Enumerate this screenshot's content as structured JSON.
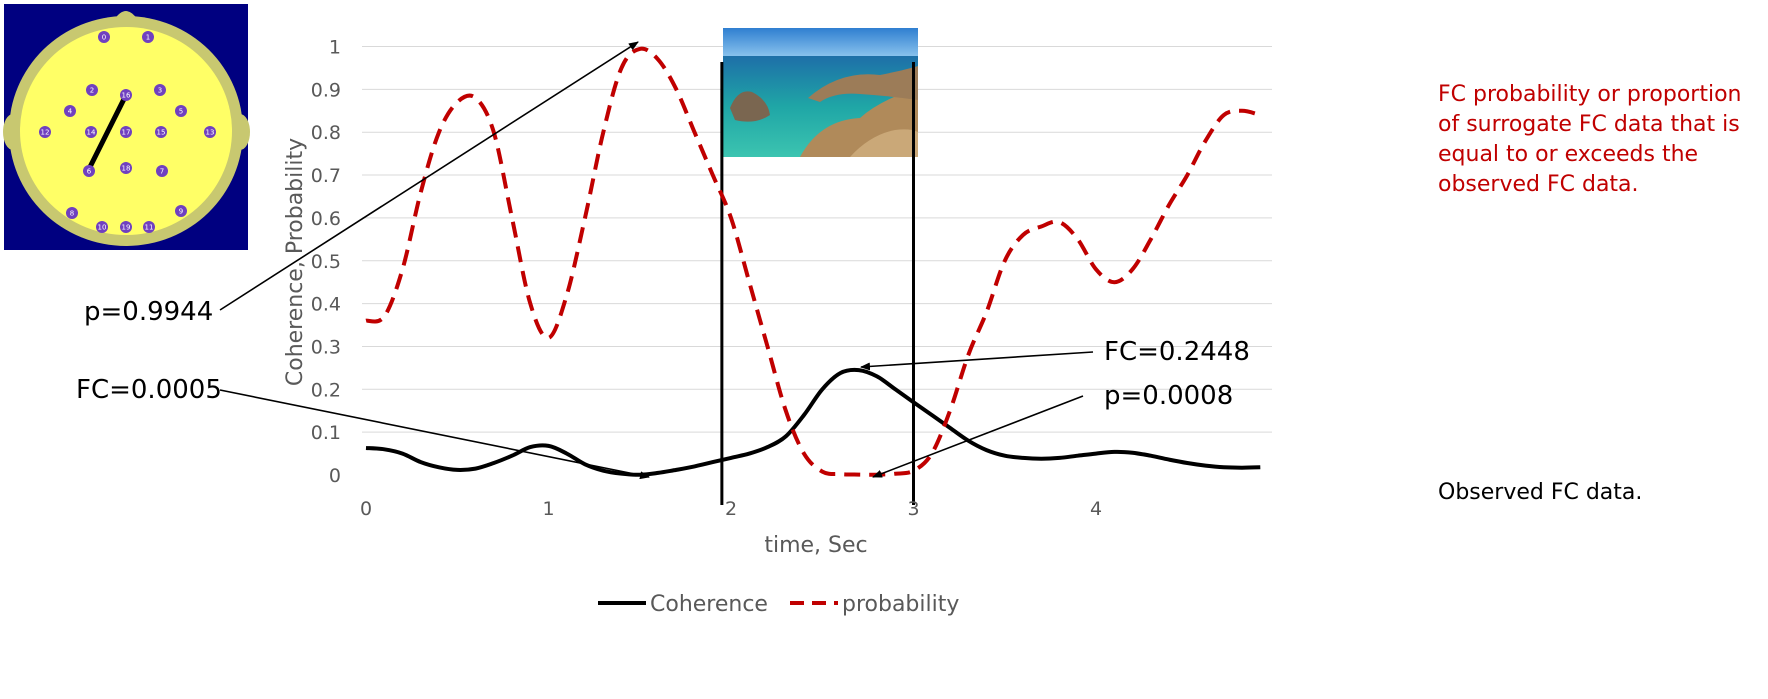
{
  "chart_data": {
    "type": "line",
    "xlabel": "time, Sec",
    "ylabel": "Coherence, Probability",
    "xlim": [
      0,
      4.9
    ],
    "ylim": [
      0,
      1
    ],
    "x_ticks": [
      "0",
      "1",
      "2",
      "3",
      "4"
    ],
    "y_ticks": [
      "0",
      "0.1",
      "0.2",
      "0.3",
      "0.4",
      "0.5",
      "0.6",
      "0.7",
      "0.8",
      "0.9",
      "1"
    ],
    "grid": true,
    "legend_position": "bottom",
    "series": [
      {
        "name": "Coherence",
        "style": "solid",
        "color": "#000000",
        "x": [
          0,
          0.1,
          0.2,
          0.3,
          0.4,
          0.5,
          0.6,
          0.7,
          0.8,
          0.9,
          1.0,
          1.1,
          1.2,
          1.3,
          1.4,
          1.5,
          1.6,
          1.7,
          1.8,
          1.9,
          2.0,
          2.1,
          2.2,
          2.3,
          2.4,
          2.5,
          2.6,
          2.7,
          2.8,
          2.9,
          3.0,
          3.1,
          3.2,
          3.3,
          3.4,
          3.5,
          3.6,
          3.7,
          3.8,
          3.9,
          4.0,
          4.1,
          4.2,
          4.3,
          4.4,
          4.5,
          4.6,
          4.7,
          4.8,
          4.9
        ],
        "y": [
          0.063,
          0.06,
          0.05,
          0.03,
          0.018,
          0.012,
          0.015,
          0.028,
          0.045,
          0.065,
          0.068,
          0.05,
          0.025,
          0.01,
          0.003,
          0.0005,
          0.005,
          0.012,
          0.02,
          0.03,
          0.04,
          0.05,
          0.065,
          0.09,
          0.14,
          0.2,
          0.238,
          0.2448,
          0.23,
          0.2,
          0.17,
          0.14,
          0.11,
          0.08,
          0.058,
          0.045,
          0.04,
          0.038,
          0.04,
          0.045,
          0.05,
          0.054,
          0.052,
          0.045,
          0.036,
          0.028,
          0.022,
          0.018,
          0.017,
          0.018
        ]
      },
      {
        "name": "probability",
        "style": "dashed",
        "color": "#c00000",
        "x": [
          0,
          0.1,
          0.2,
          0.3,
          0.4,
          0.5,
          0.6,
          0.7,
          0.8,
          0.9,
          1.0,
          1.1,
          1.2,
          1.3,
          1.4,
          1.5,
          1.6,
          1.7,
          1.8,
          1.9,
          2.0,
          2.1,
          2.2,
          2.3,
          2.4,
          2.5,
          2.6,
          2.7,
          2.8,
          2.9,
          3.0,
          3.1,
          3.2,
          3.3,
          3.4,
          3.5,
          3.6,
          3.7,
          3.8,
          3.9,
          4.0,
          4.1,
          4.2,
          4.3,
          4.4,
          4.5,
          4.6,
          4.7,
          4.8,
          4.9
        ],
        "y": [
          0.36,
          0.37,
          0.48,
          0.66,
          0.8,
          0.87,
          0.88,
          0.8,
          0.6,
          0.4,
          0.32,
          0.42,
          0.6,
          0.8,
          0.95,
          0.9944,
          0.97,
          0.9,
          0.8,
          0.7,
          0.6,
          0.45,
          0.3,
          0.15,
          0.05,
          0.008,
          0.002,
          0.001,
          0.0008,
          0.003,
          0.01,
          0.05,
          0.15,
          0.28,
          0.38,
          0.5,
          0.56,
          0.58,
          0.59,
          0.55,
          0.48,
          0.45,
          0.48,
          0.55,
          0.63,
          0.7,
          0.78,
          0.84,
          0.85,
          0.84
        ]
      }
    ],
    "annotations": [
      {
        "text": "p=0.9944",
        "target": [
          1.5,
          0.9944
        ]
      },
      {
        "text": "FC=0.0005",
        "target": [
          1.5,
          0.0005
        ]
      },
      {
        "text": "FC=0.2448",
        "target": [
          2.7,
          0.2448
        ]
      },
      {
        "text": "p=0.0008",
        "target": [
          2.8,
          0.0008
        ]
      }
    ],
    "window": {
      "x_start": 1.95,
      "x_end": 3.0
    },
    "side_note": "FC probability or proportion of surrogate FC data that is equal to or exceeds the observed FC data.",
    "side_note_lines": [
      "FC probability or proportion",
      "of surrogate FC data that is",
      "equal to or exceeds the",
      "observed FC data."
    ],
    "bottom_note": "Observed FC data.",
    "side_note_color": "#c00000",
    "legend": [
      {
        "label": "Coherence",
        "style": "solid",
        "color": "#000000"
      },
      {
        "label": "probability",
        "style": "dashed",
        "color": "#c00000"
      }
    ]
  },
  "inset_head": {
    "electrode_labels": [
      "0",
      "1",
      "2",
      "3",
      "4",
      "5",
      "6",
      "7",
      "8",
      "9",
      "10",
      "11",
      "12",
      "13",
      "14",
      "15",
      "16",
      "17",
      "18",
      "19"
    ],
    "background_color": "#000080",
    "scalp_color": "#ffff66",
    "electrode_color": "#7040c0"
  }
}
